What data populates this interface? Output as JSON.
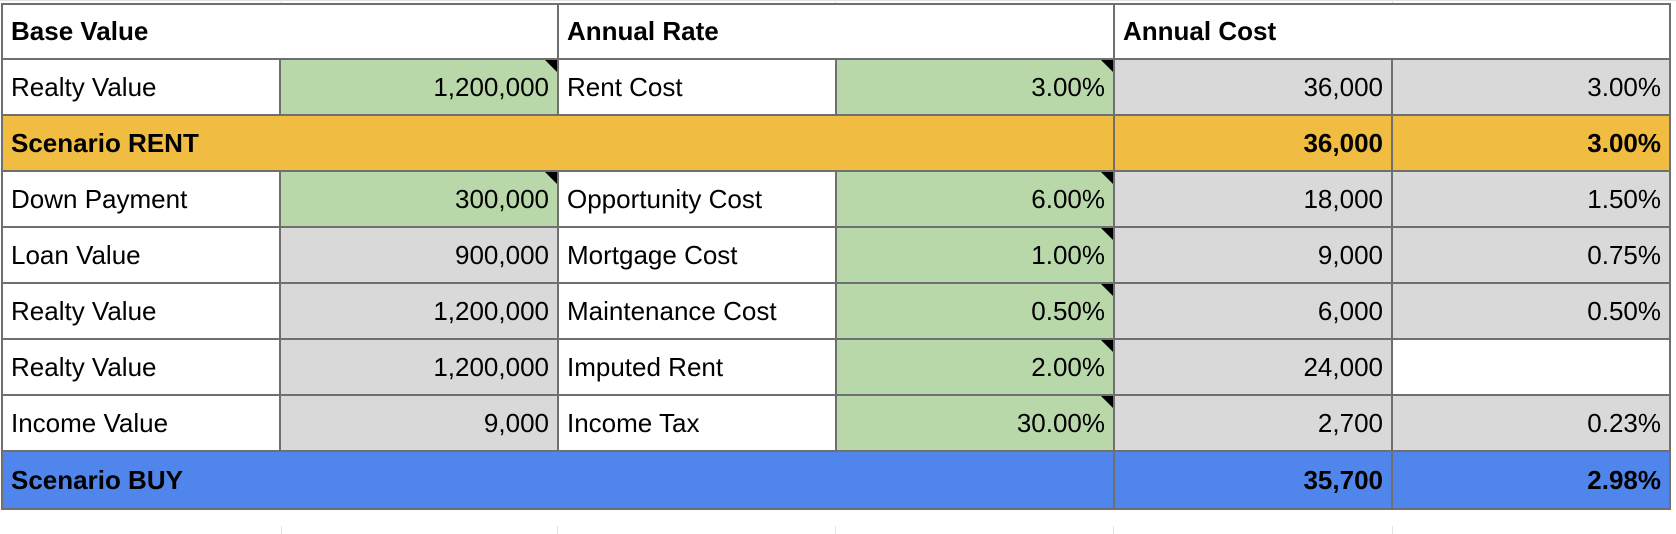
{
  "header": {
    "base_value": "Base Value",
    "annual_rate": "Annual Rate",
    "annual_cost": "Annual Cost"
  },
  "rows": [
    {
      "label": "Realty Value",
      "base": "1,200,000",
      "rate_label": "Rent Cost",
      "rate": "3.00%",
      "cost": "36,000",
      "cost_pct": "3.00%"
    },
    {
      "label": "Down Payment",
      "base": "300,000",
      "rate_label": "Opportunity Cost",
      "rate": "6.00%",
      "cost": "18,000",
      "cost_pct": "1.50%"
    },
    {
      "label": "Loan Value",
      "base": "900,000",
      "rate_label": "Mortgage Cost",
      "rate": "1.00%",
      "cost": "9,000",
      "cost_pct": "0.75%"
    },
    {
      "label": "Realty Value",
      "base": "1,200,000",
      "rate_label": "Maintenance Cost",
      "rate": "0.50%",
      "cost": "6,000",
      "cost_pct": "0.50%"
    },
    {
      "label": "Realty Value",
      "base": "1,200,000",
      "rate_label": "Imputed Rent",
      "rate": "2.00%",
      "cost": "24,000",
      "cost_pct": ""
    },
    {
      "label": "Income Value",
      "base": "9,000",
      "rate_label": "Income Tax",
      "rate": "30.00%",
      "cost": "2,700",
      "cost_pct": "0.23%"
    }
  ],
  "scenario_rent": {
    "label": "Scenario RENT",
    "cost": "36,000",
    "cost_pct": "3.00%"
  },
  "scenario_buy": {
    "label": "Scenario BUY",
    "cost": "35,700",
    "cost_pct": "2.98%"
  },
  "colors": {
    "input_green": "#b9d8aa",
    "calc_gray": "#d9d9d9",
    "rent_orange": "#f1bc42",
    "buy_blue": "#5086ec"
  }
}
